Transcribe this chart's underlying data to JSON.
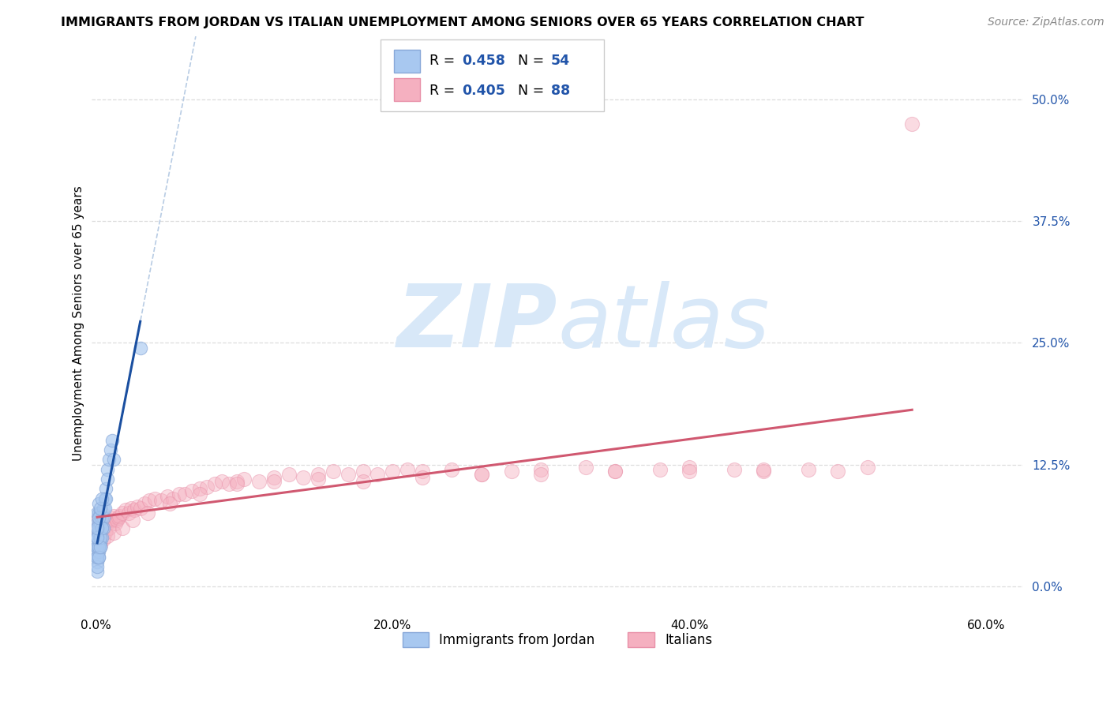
{
  "title": "IMMIGRANTS FROM JORDAN VS ITALIAN UNEMPLOYMENT AMONG SENIORS OVER 65 YEARS CORRELATION CHART",
  "source": "Source: ZipAtlas.com",
  "ylabel": "Unemployment Among Seniors over 65 years",
  "legend1_label": "Immigrants from Jordan",
  "legend2_label": "Italians",
  "R_blue": 0.458,
  "N_blue": 54,
  "R_pink": 0.405,
  "N_pink": 88,
  "blue_fill": "#a8c8f0",
  "pink_fill": "#f5b0c0",
  "blue_edge": "#88a8d8",
  "pink_edge": "#e890a8",
  "blue_line": "#1a4fa0",
  "pink_line": "#d05870",
  "dash_color": "#b8cce4",
  "watermark_color": "#d8e8f8",
  "grid_color": "#dddddd",
  "tick_color": "#2255aa",
  "xlim_min": -0.003,
  "xlim_max": 0.625,
  "ylim_min": -0.025,
  "ylim_max": 0.565,
  "xtick_vals": [
    0.0,
    0.2,
    0.4,
    0.6
  ],
  "ytick_vals": [
    0.0,
    0.125,
    0.25,
    0.375,
    0.5
  ],
  "blue_x": [
    0.001,
    0.001,
    0.001,
    0.001,
    0.001,
    0.001,
    0.001,
    0.001,
    0.001,
    0.001,
    0.002,
    0.002,
    0.002,
    0.002,
    0.002,
    0.002,
    0.002,
    0.002,
    0.002,
    0.003,
    0.003,
    0.003,
    0.003,
    0.003,
    0.004,
    0.004,
    0.004,
    0.005,
    0.005,
    0.005,
    0.006,
    0.006,
    0.007,
    0.007,
    0.008,
    0.008,
    0.009,
    0.01,
    0.011,
    0.012,
    0.001,
    0.001,
    0.001,
    0.002,
    0.002,
    0.003,
    0.003,
    0.004,
    0.001,
    0.001,
    0.002,
    0.003,
    0.004,
    0.03
  ],
  "blue_y": [
    0.055,
    0.045,
    0.065,
    0.075,
    0.035,
    0.025,
    0.015,
    0.03,
    0.05,
    0.04,
    0.055,
    0.065,
    0.045,
    0.035,
    0.075,
    0.085,
    0.04,
    0.03,
    0.06,
    0.05,
    0.065,
    0.045,
    0.075,
    0.04,
    0.06,
    0.07,
    0.05,
    0.08,
    0.07,
    0.06,
    0.09,
    0.08,
    0.1,
    0.09,
    0.12,
    0.11,
    0.13,
    0.14,
    0.15,
    0.13,
    0.02,
    0.03,
    0.04,
    0.04,
    0.03,
    0.05,
    0.04,
    0.06,
    0.05,
    0.06,
    0.07,
    0.08,
    0.09,
    0.245
  ],
  "pink_x": [
    0.001,
    0.002,
    0.002,
    0.003,
    0.004,
    0.004,
    0.005,
    0.005,
    0.006,
    0.006,
    0.007,
    0.008,
    0.009,
    0.01,
    0.011,
    0.012,
    0.013,
    0.014,
    0.015,
    0.016,
    0.018,
    0.02,
    0.022,
    0.024,
    0.026,
    0.028,
    0.03,
    0.033,
    0.036,
    0.04,
    0.044,
    0.048,
    0.052,
    0.056,
    0.06,
    0.065,
    0.07,
    0.075,
    0.08,
    0.085,
    0.09,
    0.095,
    0.1,
    0.11,
    0.12,
    0.13,
    0.14,
    0.15,
    0.16,
    0.17,
    0.18,
    0.19,
    0.2,
    0.21,
    0.22,
    0.24,
    0.26,
    0.28,
    0.3,
    0.33,
    0.35,
    0.38,
    0.4,
    0.43,
    0.45,
    0.48,
    0.5,
    0.52,
    0.003,
    0.005,
    0.008,
    0.012,
    0.018,
    0.025,
    0.035,
    0.05,
    0.07,
    0.095,
    0.12,
    0.15,
    0.18,
    0.22,
    0.26,
    0.3,
    0.35,
    0.4,
    0.45,
    0.55
  ],
  "pink_y": [
    0.06,
    0.055,
    0.07,
    0.06,
    0.065,
    0.075,
    0.06,
    0.07,
    0.055,
    0.065,
    0.068,
    0.065,
    0.06,
    0.07,
    0.068,
    0.072,
    0.065,
    0.068,
    0.07,
    0.072,
    0.075,
    0.078,
    0.075,
    0.08,
    0.078,
    0.082,
    0.08,
    0.085,
    0.088,
    0.09,
    0.088,
    0.092,
    0.09,
    0.095,
    0.095,
    0.098,
    0.1,
    0.102,
    0.105,
    0.108,
    0.105,
    0.108,
    0.11,
    0.108,
    0.112,
    0.115,
    0.112,
    0.115,
    0.118,
    0.115,
    0.118,
    0.115,
    0.118,
    0.12,
    0.118,
    0.12,
    0.115,
    0.118,
    0.12,
    0.122,
    0.118,
    0.12,
    0.122,
    0.12,
    0.118,
    0.12,
    0.118,
    0.122,
    0.042,
    0.048,
    0.052,
    0.055,
    0.06,
    0.068,
    0.075,
    0.085,
    0.095,
    0.105,
    0.108,
    0.11,
    0.108,
    0.112,
    0.115,
    0.115,
    0.118,
    0.118,
    0.12,
    0.475
  ]
}
